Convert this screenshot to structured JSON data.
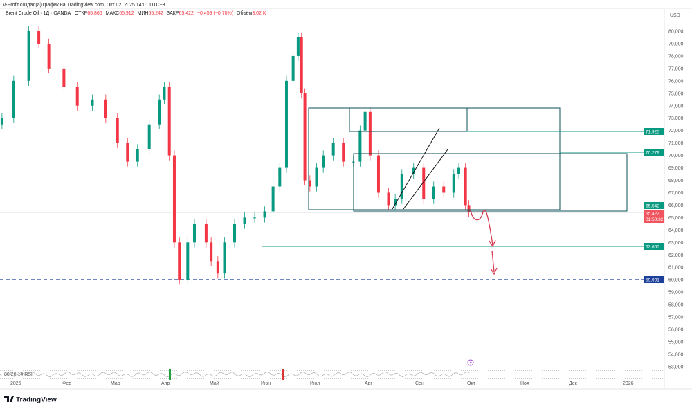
{
  "caption": "V-Profit создал(а) график на TradingView.com, Окт 02, 2025 14:01 UTC+3",
  "legend": {
    "symbol": "Brent Crude Oil · 1Д · OANDA",
    "open_label": "ОТКР",
    "open": "65,866",
    "high_label": "МАКС",
    "high": "65,912",
    "low_label": "МИН",
    "low": "65,242",
    "close_label": "ЗАКР",
    "close": "65,422",
    "change": "−0,459 (−0,70%)",
    "volume_label": "Объём",
    "volume": "3,02 K"
  },
  "currency": "USD",
  "rsi_label": "80/20 14 RSI",
  "logo_text": "TradingView",
  "colors": {
    "up": "#089981",
    "down": "#f23645",
    "drawing": "#0b4f5a",
    "level": "#089981",
    "dashed": "#1c3f9a",
    "arrow": "#d63a4f"
  },
  "price_badges": {
    "level1": "71,925",
    "level2": "70,279",
    "level3": "65,542",
    "last": "65,422",
    "countdown": "01:58:32",
    "level4": "62,655",
    "level5": "59,991"
  },
  "chart_data": {
    "type": "candlestick",
    "ylim": [
      53,
      80.5
    ],
    "y_ticks": [
      "53,000",
      "54,000",
      "55,000",
      "56,000",
      "57,000",
      "58,000",
      "59,000",
      "60,000",
      "61,000",
      "62,000",
      "63,000",
      "64,000",
      "65,000",
      "66,000",
      "67,000",
      "68,000",
      "69,000",
      "70,000",
      "71,000",
      "72,000",
      "73,000",
      "74,000",
      "75,000",
      "76,000",
      "77,000",
      "78,000",
      "79,000",
      "80,000"
    ],
    "x_ticks": [
      "2025",
      "Фев",
      "Мар",
      "Апр",
      "Май",
      "Июн",
      "Июл",
      "Авг",
      "Сен",
      "Окт",
      "Ноя",
      "Дек",
      "2026"
    ],
    "series": [
      [
        "2024-12-27",
        73.0
      ],
      [
        "2025-01-03",
        76.0
      ],
      [
        "2025-01-12",
        80.0
      ],
      [
        "2025-01-18",
        79.0
      ],
      [
        "2025-01-24",
        77.0
      ],
      [
        "2025-02-02",
        75.5
      ],
      [
        "2025-02-10",
        74.0
      ],
      [
        "2025-02-19",
        74.5
      ],
      [
        "2025-02-27",
        73.0
      ],
      [
        "2025-03-06",
        71.0
      ],
      [
        "2025-03-12",
        69.5
      ],
      [
        "2025-03-18",
        70.5
      ],
      [
        "2025-03-25",
        72.5
      ],
      [
        "2025-03-31",
        74.5
      ],
      [
        "2025-04-03",
        75.5
      ],
      [
        "2025-04-06",
        70.0
      ],
      [
        "2025-04-09",
        63.0
      ],
      [
        "2025-04-12",
        60.0
      ],
      [
        "2025-04-17",
        63.0
      ],
      [
        "2025-04-21",
        64.5
      ],
      [
        "2025-04-28",
        63.0
      ],
      [
        "2025-05-01",
        61.5
      ],
      [
        "2025-05-05",
        60.5
      ],
      [
        "2025-05-09",
        63.0
      ],
      [
        "2025-05-15",
        64.5
      ],
      [
        "2025-05-21",
        65.0
      ],
      [
        "2025-05-27",
        65.0
      ],
      [
        "2025-06-02",
        65.5
      ],
      [
        "2025-06-07",
        67.5
      ],
      [
        "2025-06-11",
        69.0
      ],
      [
        "2025-06-15",
        76.0
      ],
      [
        "2025-06-19",
        78.0
      ],
      [
        "2025-06-22",
        79.5
      ],
      [
        "2025-06-24",
        75.0
      ],
      [
        "2025-06-26",
        68.0
      ],
      [
        "2025-06-29",
        67.5
      ],
      [
        "2025-07-03",
        69.0
      ],
      [
        "2025-07-07",
        70.0
      ],
      [
        "2025-07-13",
        71.0
      ],
      [
        "2025-07-19",
        69.5
      ],
      [
        "2025-07-25",
        69.5
      ],
      [
        "2025-07-29",
        72.0
      ],
      [
        "2025-08-01",
        73.5
      ],
      [
        "2025-08-04",
        70.0
      ],
      [
        "2025-08-09",
        67.0
      ],
      [
        "2025-08-15",
        66.0
      ],
      [
        "2025-08-19",
        66.5
      ],
      [
        "2025-08-23",
        68.5
      ],
      [
        "2025-08-30",
        69.0
      ],
      [
        "2025-09-05",
        66.5
      ],
      [
        "2025-09-11",
        67.5
      ],
      [
        "2025-09-17",
        67.0
      ],
      [
        "2025-09-23",
        68.5
      ],
      [
        "2025-09-26",
        69.0
      ],
      [
        "2025-09-30",
        66.0
      ],
      [
        "2025-10-02",
        65.42
      ]
    ],
    "levels": [
      71.925,
      70.279,
      65.542,
      62.655,
      59.991
    ],
    "grid": false
  }
}
